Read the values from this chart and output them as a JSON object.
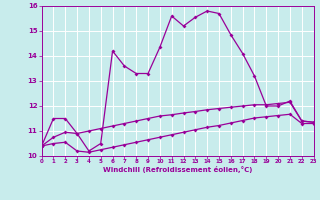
{
  "xlabel": "Windchill (Refroidissement éolien,°C)",
  "xlim": [
    0,
    23
  ],
  "ylim": [
    10,
    16
  ],
  "yticks": [
    10,
    11,
    12,
    13,
    14,
    15,
    16
  ],
  "xticks": [
    0,
    1,
    2,
    3,
    4,
    5,
    6,
    7,
    8,
    9,
    10,
    11,
    12,
    13,
    14,
    15,
    16,
    17,
    18,
    19,
    20,
    21,
    22,
    23
  ],
  "bg_color": "#c8ecec",
  "line_color": "#990099",
  "grid_color": "#aadddd",
  "line1_x": [
    0,
    1,
    2,
    3,
    4,
    5,
    6,
    7,
    8,
    9,
    10,
    11,
    12,
    13,
    14,
    15,
    16,
    17,
    18,
    19,
    20,
    21,
    22,
    23
  ],
  "line1_y": [
    10.4,
    11.5,
    11.5,
    10.9,
    10.2,
    10.5,
    14.2,
    13.6,
    13.3,
    13.3,
    14.35,
    15.6,
    15.2,
    15.55,
    15.8,
    15.7,
    14.85,
    14.1,
    13.2,
    12.0,
    12.0,
    12.2,
    11.4,
    11.35
  ],
  "line2_x": [
    0,
    1,
    2,
    3,
    4,
    5,
    6,
    7,
    8,
    9,
    10,
    11,
    12,
    13,
    14,
    15,
    16,
    17,
    18,
    19,
    20,
    21,
    22,
    23
  ],
  "line2_y": [
    10.4,
    10.75,
    10.95,
    10.9,
    11.0,
    11.1,
    11.2,
    11.3,
    11.4,
    11.5,
    11.6,
    11.65,
    11.72,
    11.78,
    11.85,
    11.9,
    11.95,
    12.0,
    12.05,
    12.05,
    12.1,
    12.15,
    11.4,
    11.35
  ],
  "line3_x": [
    0,
    1,
    2,
    3,
    4,
    5,
    6,
    7,
    8,
    9,
    10,
    11,
    12,
    13,
    14,
    15,
    16,
    17,
    18,
    19,
    20,
    21,
    22,
    23
  ],
  "line3_y": [
    10.4,
    10.5,
    10.55,
    10.2,
    10.15,
    10.25,
    10.35,
    10.45,
    10.55,
    10.65,
    10.75,
    10.85,
    10.95,
    11.05,
    11.15,
    11.22,
    11.32,
    11.42,
    11.52,
    11.57,
    11.62,
    11.67,
    11.3,
    11.3
  ]
}
